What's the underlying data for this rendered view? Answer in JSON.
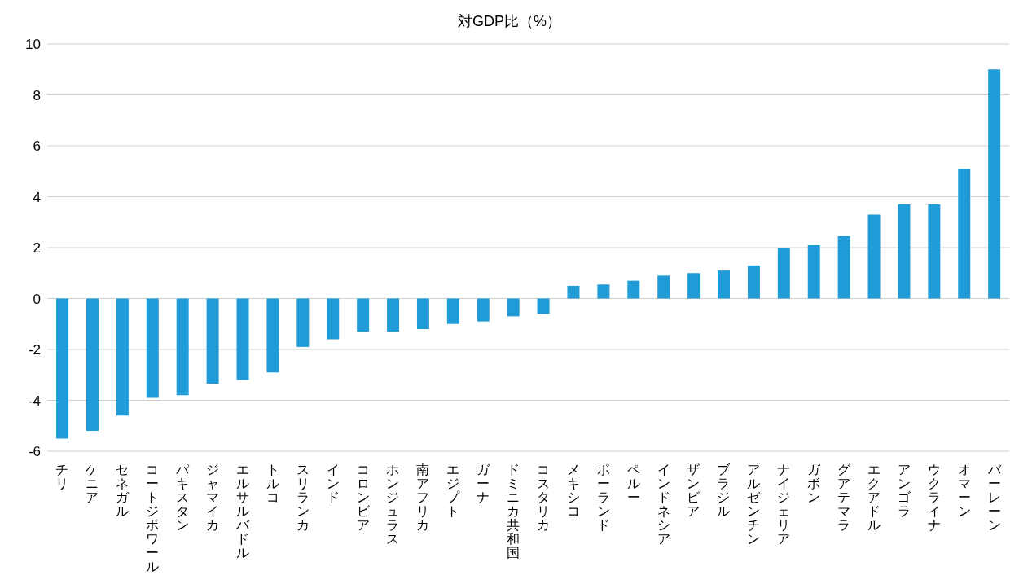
{
  "chart_data": {
    "type": "bar",
    "title": "対GDP比（%）",
    "categories": [
      "チリ",
      "ケニア",
      "セネガル",
      "コートジボワール",
      "パキスタン",
      "ジャマイカ",
      "エルサルバドル",
      "トルコ",
      "スリランカ",
      "インド",
      "コロンビア",
      "ホンジュラス",
      "南アフリカ",
      "エジプト",
      "ガーナ",
      "ドミニカ共和国",
      "コスタリカ",
      "メキシコ",
      "ポーランド",
      "ペルー",
      "インドネシア",
      "ザンビア",
      "ブラジル",
      "アルゼンチン",
      "ナイジェリア",
      "ガボン",
      "グアテマラ",
      "エクアドル",
      "アンゴラ",
      "ウクライナ",
      "オマーン",
      "バーレーン"
    ],
    "values": [
      -5.5,
      -5.2,
      -4.6,
      -3.9,
      -3.8,
      -3.35,
      -3.2,
      -2.9,
      -1.9,
      -1.6,
      -1.3,
      -1.3,
      -1.2,
      -1.0,
      -0.9,
      -0.7,
      -0.6,
      0.5,
      0.55,
      0.7,
      0.9,
      1.0,
      1.1,
      1.3,
      2.0,
      2.1,
      2.45,
      3.3,
      3.7,
      3.7,
      5.1,
      9.0
    ],
    "color": "#1f9bd7",
    "ylim": [
      -6,
      10
    ],
    "yticks": [
      -6,
      -4,
      -2,
      0,
      2,
      4,
      6,
      8,
      10
    ],
    "grid": "y"
  }
}
